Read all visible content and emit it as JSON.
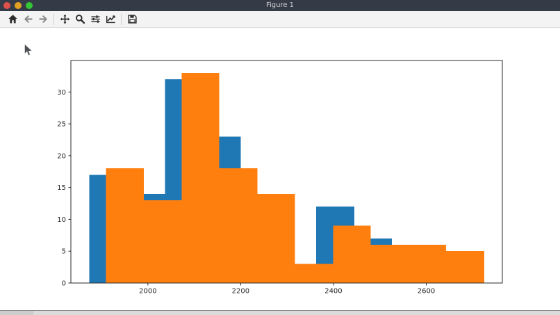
{
  "window": {
    "title": "Figure 1"
  },
  "traffic_lights": {
    "close_color": "#e0504b",
    "minimize_color": "#dfa023",
    "zoom_color": "#34c637"
  },
  "toolbar": {
    "icons": [
      "home",
      "back",
      "forward",
      "pan",
      "zoom-rect",
      "configure-subplots",
      "edit-axes",
      "save"
    ],
    "disabled_icons": [
      "back",
      "forward"
    ],
    "icon_color": "#2d2d2d",
    "disabled_icon_color": "#8c8c8c"
  },
  "chart_data": {
    "type": "bar",
    "subtype": "overlapping-histograms",
    "title": "",
    "xlabel": "",
    "ylabel": "",
    "grid": false,
    "legend": null,
    "xlim": [
      1834,
      2764
    ],
    "ylim": [
      0,
      34.95
    ],
    "xticks": [
      2000,
      2200,
      2400,
      2600
    ],
    "yticks": [
      0,
      5,
      10,
      15,
      20,
      25,
      30
    ],
    "series": [
      {
        "name": "series-blue",
        "color": "#1f77b4",
        "bin_edges": [
          1874,
          1956,
          2037,
          2119,
          2200,
          2282,
          2363,
          2445,
          2526,
          2608,
          2689
        ],
        "counts": [
          17,
          14,
          32,
          23,
          null,
          null,
          12,
          7,
          null,
          null
        ],
        "note": "null counts are occluded by the orange series drawn on top"
      },
      {
        "name": "series-orange",
        "color": "#ff7f0e",
        "bin_edges": [
          1910,
          1991,
          2073,
          2154,
          2236,
          2317,
          2399,
          2480,
          2562,
          2643,
          2725
        ],
        "counts": [
          18,
          13,
          33,
          18,
          14,
          3,
          9,
          6,
          6,
          5
        ]
      }
    ],
    "spine_color": "#2b2b2b",
    "tick_label_color": "#262626"
  }
}
